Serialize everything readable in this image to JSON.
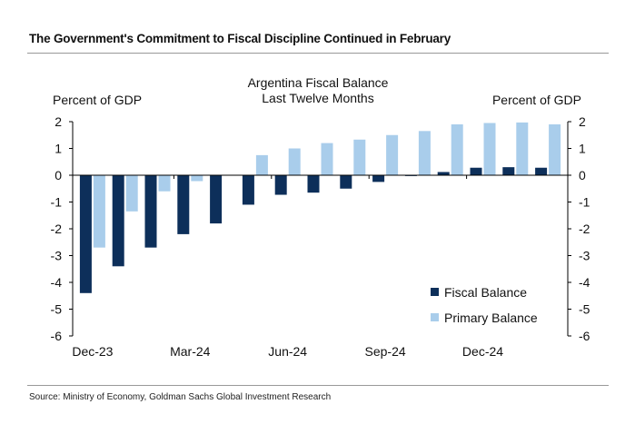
{
  "header": {
    "title": "The Government's Commitment to Fiscal Discipline Continued in February"
  },
  "footer": {
    "source": "Source: Ministry of Economy, Goldman Sachs Global Investment Research"
  },
  "chart_data": {
    "type": "bar",
    "title": "Argentina Fiscal Balance",
    "subtitle": "Last Twelve Months",
    "ylabel_left": "Percent of GDP",
    "ylabel_right": "Percent of GDP",
    "ylim": [
      -6,
      2
    ],
    "yticks": [
      2,
      1,
      0,
      -1,
      -2,
      -3,
      -4,
      -5,
      -6
    ],
    "categories": [
      "Dec-23",
      "Jan-24",
      "Feb-24",
      "Mar-24",
      "Apr-24",
      "May-24",
      "Jun-24",
      "Jul-24",
      "Aug-24",
      "Sep-24",
      "Oct-24",
      "Nov-24",
      "Dec-24",
      "Jan-25",
      "Feb-25"
    ],
    "xtick_labels": [
      "Dec-23",
      "Mar-24",
      "Jun-24",
      "Sep-24",
      "Dec-24"
    ],
    "series": [
      {
        "name": "Fiscal Balance",
        "color": "#0d2f5a",
        "values": [
          -4.4,
          -3.4,
          -2.7,
          -2.2,
          -1.8,
          -1.1,
          -0.73,
          -0.65,
          -0.5,
          -0.25,
          -0.03,
          0.12,
          0.28,
          0.3,
          0.28
        ]
      },
      {
        "name": "Primary Balance",
        "color": "#a9cdeb",
        "values": [
          -2.7,
          -1.35,
          -0.6,
          -0.22,
          0,
          0.75,
          1.0,
          1.2,
          1.33,
          1.5,
          1.65,
          1.9,
          1.95,
          1.97,
          1.9
        ]
      }
    ],
    "grid": false,
    "legend": "bottom-right"
  }
}
